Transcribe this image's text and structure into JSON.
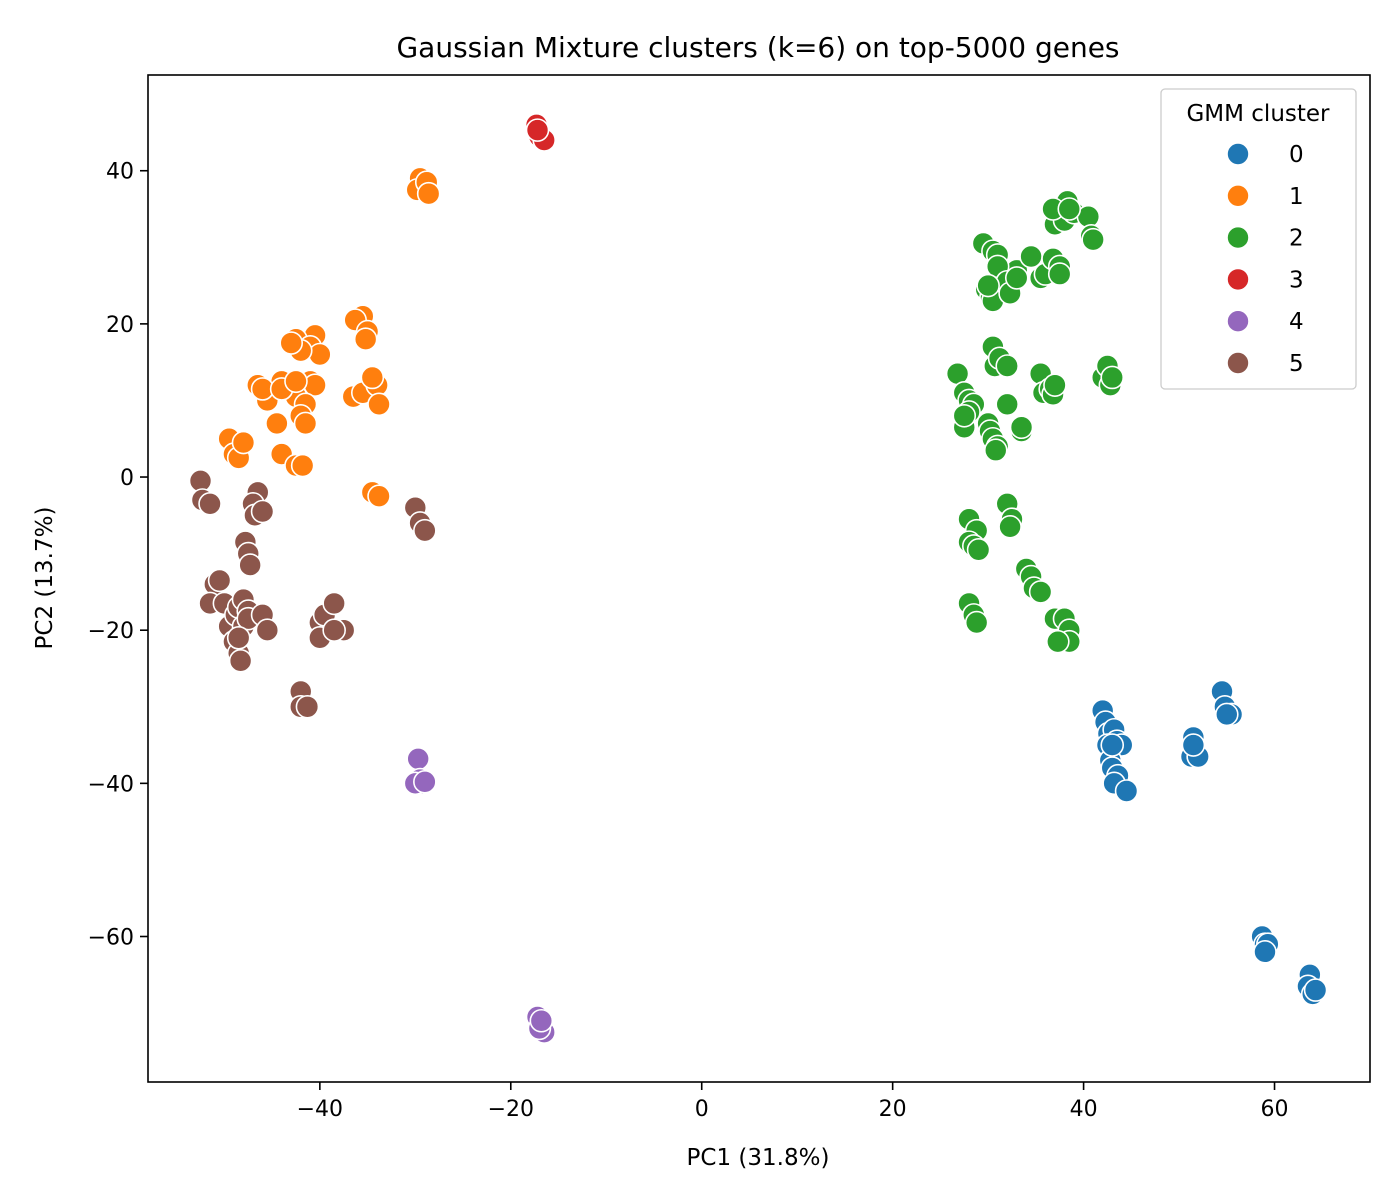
{
  "chart_data": {
    "type": "scatter",
    "title": "Gaussian Mixture clusters (k=6) on top-5000 genes",
    "xlabel": "PC1 (31.8%)",
    "ylabel": "PC2 (13.7%)",
    "xlim": [
      -58,
      70
    ],
    "ylim": [
      -79,
      52.5
    ],
    "xticks": [
      -40,
      -20,
      0,
      20,
      40,
      60
    ],
    "yticks": [
      -60,
      -40,
      -20,
      0,
      20,
      40
    ],
    "xtick_labels": [
      "−40",
      "−20",
      "0",
      "20",
      "40",
      "60"
    ],
    "ytick_labels": [
      "−60",
      "−40",
      "−20",
      "0",
      "20",
      "40"
    ],
    "grid": false,
    "legend": {
      "title": "GMM cluster",
      "placement": "top-right"
    },
    "series": [
      {
        "name": "0",
        "color": "#1f77b4",
        "points": [
          [
            42.0,
            -30.5
          ],
          [
            42.3,
            -32.0
          ],
          [
            42.6,
            -33.5
          ],
          [
            43.2,
            -33.0
          ],
          [
            42.5,
            -35.0
          ],
          [
            43.5,
            -34.5
          ],
          [
            44.0,
            -35.0
          ],
          [
            42.8,
            -37.0
          ],
          [
            43.0,
            -38.0
          ],
          [
            43.6,
            -39.0
          ],
          [
            43.2,
            -40.0
          ],
          [
            44.5,
            -41.0
          ],
          [
            43.0,
            -35.0
          ],
          [
            51.5,
            -34.0
          ],
          [
            51.3,
            -36.5
          ],
          [
            52.0,
            -36.5
          ],
          [
            51.5,
            -35.0
          ],
          [
            54.5,
            -28.0
          ],
          [
            54.8,
            -30.0
          ],
          [
            55.5,
            -31.0
          ],
          [
            55.0,
            -31.0
          ],
          [
            58.7,
            -60.0
          ],
          [
            59.0,
            -61.0
          ],
          [
            59.3,
            -61.0
          ],
          [
            59.0,
            -62.0
          ],
          [
            63.7,
            -65.0
          ],
          [
            63.5,
            -66.5
          ],
          [
            64.0,
            -67.5
          ],
          [
            64.3,
            -67.0
          ]
        ]
      },
      {
        "name": "1",
        "color": "#ff7f0e",
        "points": [
          [
            -29.5,
            39.0
          ],
          [
            -29.8,
            37.5
          ],
          [
            -28.8,
            38.5
          ],
          [
            -28.6,
            37.0
          ],
          [
            -35.5,
            21.0
          ],
          [
            -36.3,
            20.5
          ],
          [
            -35.0,
            19.0
          ],
          [
            -35.2,
            18.0
          ],
          [
            -36.5,
            10.5
          ],
          [
            -35.5,
            11.0
          ],
          [
            -34.0,
            12.0
          ],
          [
            -33.8,
            9.5
          ],
          [
            -34.5,
            13.0
          ],
          [
            -40.5,
            18.5
          ],
          [
            -42.5,
            18.0
          ],
          [
            -41.0,
            17.0
          ],
          [
            -40.0,
            16.0
          ],
          [
            -42.0,
            16.5
          ],
          [
            -43.0,
            17.5
          ],
          [
            -44.0,
            12.5
          ],
          [
            -42.5,
            12.0
          ],
          [
            -41.0,
            12.5
          ],
          [
            -40.5,
            12.0
          ],
          [
            -42.5,
            10.5
          ],
          [
            -41.5,
            9.5
          ],
          [
            -42.0,
            8.0
          ],
          [
            -41.5,
            7.0
          ],
          [
            -44.5,
            7.0
          ],
          [
            -45.5,
            10.0
          ],
          [
            -46.5,
            12.0
          ],
          [
            -46.0,
            11.5
          ],
          [
            -44.0,
            11.5
          ],
          [
            -42.5,
            12.5
          ],
          [
            -49.5,
            5.0
          ],
          [
            -49.0,
            3.0
          ],
          [
            -48.5,
            2.5
          ],
          [
            -48.0,
            4.5
          ],
          [
            -44.0,
            3.0
          ],
          [
            -42.5,
            1.5
          ],
          [
            -41.8,
            1.5
          ],
          [
            -34.5,
            -2.0
          ],
          [
            -33.8,
            -2.5
          ]
        ]
      },
      {
        "name": "2",
        "color": "#2ca02c",
        "points": [
          [
            29.5,
            30.5
          ],
          [
            30.5,
            29.5
          ],
          [
            31.0,
            29.0
          ],
          [
            33.0,
            27.0
          ],
          [
            34.5,
            28.8
          ],
          [
            35.5,
            26.0
          ],
          [
            36.0,
            26.5
          ],
          [
            36.8,
            28.5
          ],
          [
            37.5,
            27.5
          ],
          [
            37.5,
            26.5
          ],
          [
            37.0,
            33.0
          ],
          [
            38.0,
            33.5
          ],
          [
            38.3,
            36.0
          ],
          [
            39.0,
            34.5
          ],
          [
            40.5,
            34.0
          ],
          [
            40.8,
            31.5
          ],
          [
            41.0,
            31.0
          ],
          [
            36.8,
            35.0
          ],
          [
            38.5,
            35.0
          ],
          [
            29.8,
            24.5
          ],
          [
            30.3,
            23.5
          ],
          [
            30.5,
            23.0
          ],
          [
            31.0,
            27.5
          ],
          [
            32.0,
            25.5
          ],
          [
            32.3,
            24.0
          ],
          [
            33.0,
            26.0
          ],
          [
            30.0,
            25.0
          ],
          [
            26.8,
            13.5
          ],
          [
            27.5,
            11.0
          ],
          [
            28.0,
            10.0
          ],
          [
            28.5,
            9.5
          ],
          [
            28.0,
            8.5
          ],
          [
            27.5,
            6.5
          ],
          [
            27.5,
            8.0
          ],
          [
            30.0,
            7.0
          ],
          [
            30.2,
            6.0
          ],
          [
            30.5,
            5.0
          ],
          [
            31.0,
            4.0
          ],
          [
            30.8,
            3.5
          ],
          [
            32.0,
            9.5
          ],
          [
            33.5,
            6.0
          ],
          [
            33.5,
            6.5
          ],
          [
            30.5,
            17.0
          ],
          [
            30.7,
            14.5
          ],
          [
            31.2,
            15.5
          ],
          [
            32.0,
            14.5
          ],
          [
            35.5,
            13.5
          ],
          [
            35.8,
            11.0
          ],
          [
            36.5,
            11.5
          ],
          [
            36.8,
            10.8
          ],
          [
            37.0,
            12.0
          ],
          [
            42.0,
            13.0
          ],
          [
            42.5,
            14.5
          ],
          [
            42.8,
            12.0
          ],
          [
            43.0,
            13.0
          ],
          [
            28.0,
            -5.5
          ],
          [
            28.8,
            -7.0
          ],
          [
            28.0,
            -8.5
          ],
          [
            28.5,
            -9.0
          ],
          [
            29.0,
            -9.5
          ],
          [
            32.0,
            -3.5
          ],
          [
            32.5,
            -5.5
          ],
          [
            32.3,
            -6.5
          ],
          [
            34.0,
            -12.0
          ],
          [
            34.5,
            -13.0
          ],
          [
            34.8,
            -14.5
          ],
          [
            35.5,
            -15.0
          ],
          [
            28.0,
            -16.5
          ],
          [
            28.5,
            -18.0
          ],
          [
            28.8,
            -19.0
          ],
          [
            37.0,
            -18.5
          ],
          [
            38.0,
            -18.5
          ],
          [
            38.5,
            -20.0
          ],
          [
            38.5,
            -21.5
          ],
          [
            37.3,
            -21.5
          ]
        ]
      },
      {
        "name": "3",
        "color": "#d62728",
        "points": [
          [
            -17.3,
            46.0
          ],
          [
            -17.0,
            44.5
          ],
          [
            -16.5,
            44.0
          ],
          [
            -17.2,
            45.3
          ]
        ]
      },
      {
        "name": "4",
        "color": "#9467bd",
        "points": [
          [
            -29.7,
            -36.8
          ],
          [
            -29.5,
            -39.5
          ],
          [
            -29.2,
            -40.0
          ],
          [
            -30.0,
            -40.0
          ],
          [
            -29.0,
            -39.8
          ],
          [
            -17.2,
            -70.5
          ],
          [
            -16.5,
            -72.5
          ],
          [
            -17.0,
            -72.0
          ],
          [
            -16.8,
            -71.0
          ]
        ]
      },
      {
        "name": "5",
        "color": "#8c564b",
        "points": [
          [
            -52.5,
            -0.5
          ],
          [
            -52.3,
            -3.0
          ],
          [
            -51.5,
            -3.5
          ],
          [
            -46.5,
            -2.0
          ],
          [
            -47.0,
            -3.5
          ],
          [
            -46.8,
            -5.0
          ],
          [
            -46.0,
            -4.5
          ],
          [
            -47.8,
            -8.5
          ],
          [
            -47.5,
            -10.0
          ],
          [
            -47.3,
            -11.5
          ],
          [
            -51.0,
            -14.0
          ],
          [
            -50.5,
            -13.5
          ],
          [
            -51.5,
            -16.5
          ],
          [
            -50.0,
            -16.5
          ],
          [
            -49.5,
            -19.5
          ],
          [
            -48.8,
            -18.0
          ],
          [
            -48.5,
            -17.0
          ],
          [
            -48.0,
            -16.0
          ],
          [
            -47.5,
            -17.5
          ],
          [
            -48.0,
            -19.5
          ],
          [
            -47.5,
            -18.5
          ],
          [
            -49.0,
            -21.5
          ],
          [
            -48.5,
            -23.0
          ],
          [
            -48.3,
            -24.0
          ],
          [
            -48.5,
            -21.0
          ],
          [
            -46.0,
            -18.0
          ],
          [
            -45.5,
            -20.0
          ],
          [
            -40.0,
            -19.0
          ],
          [
            -39.5,
            -18.0
          ],
          [
            -38.5,
            -16.5
          ],
          [
            -38.0,
            -20.0
          ],
          [
            -37.5,
            -20.0
          ],
          [
            -40.0,
            -21.0
          ],
          [
            -38.5,
            -20.0
          ],
          [
            -42.0,
            -28.0
          ],
          [
            -42.0,
            -30.0
          ],
          [
            -41.3,
            -30.0
          ],
          [
            -30.0,
            -4.0
          ],
          [
            -29.5,
            -6.0
          ],
          [
            -29.0,
            -7.0
          ]
        ]
      }
    ]
  }
}
